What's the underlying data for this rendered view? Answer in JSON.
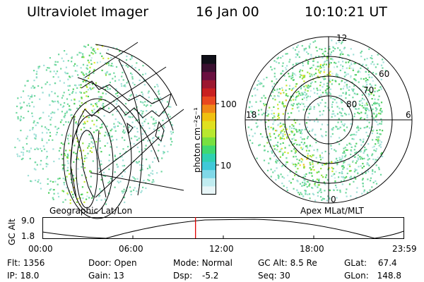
{
  "header": {
    "instrument": "Ultraviolet Imager",
    "date": "16 Jan 00",
    "time": "10:10:21 UT"
  },
  "left_panel": {
    "caption": "Geographic Lat/Lon"
  },
  "right_panel": {
    "caption": "Apex  MLat/MLT",
    "mlt_labels": {
      "top": "12",
      "left": "18",
      "right": "6",
      "bottom": "0"
    },
    "lat_labels": [
      "60",
      "70",
      "80"
    ]
  },
  "colorbar": {
    "unit_label": "photon cm⁻²s⁻¹",
    "tick_labels": [
      "100",
      "10"
    ],
    "colors": [
      "#101018",
      "#3a1030",
      "#6a1040",
      "#9c1830",
      "#c82020",
      "#e84820",
      "#f08818",
      "#f0c010",
      "#e0e020",
      "#b8e830",
      "#78e040",
      "#40d870",
      "#30d0b0",
      "#40c8d8",
      "#80d8e8",
      "#c0ecf0",
      "#e8f6f8"
    ]
  },
  "altitude_plot": {
    "ylabel": "GC Alt",
    "y_ticks": [
      "9.0",
      "1.8"
    ],
    "x_ticks": [
      "00:00",
      "06:00",
      "12:00",
      "18:00",
      "23:59"
    ],
    "current_time_fraction": 0.424,
    "marker_color": "#e00000"
  },
  "footer": {
    "flt_label": "Flt:",
    "flt_value": "1356",
    "ip_label": "IP:",
    "ip_value": "18.0",
    "door_label": "Door:",
    "door_value": "Open",
    "gain_label": "Gain:",
    "gain_value": "13",
    "mode_label": "Mode:",
    "mode_value": "Normal",
    "dsp_label": "Dsp:",
    "dsp_value": "-5.2",
    "gcalt_label": "GC Alt:",
    "gcalt_value": "8.5 Re",
    "seq_label": "Seq:",
    "seq_value": "30",
    "glat_label": "GLat:",
    "glat_value": "67.4",
    "glon_label": "GLon:",
    "glon_value": "148.8"
  }
}
